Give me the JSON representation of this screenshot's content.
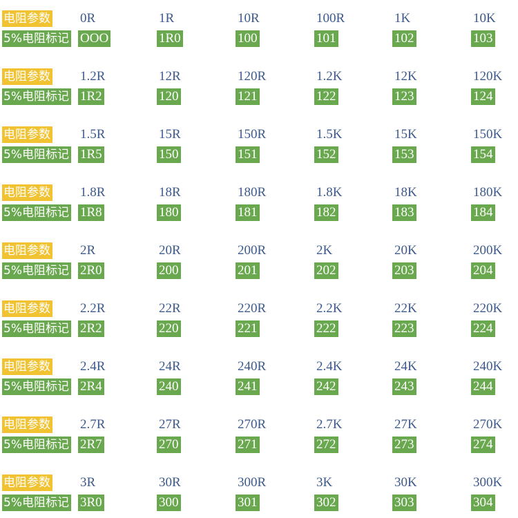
{
  "labels": {
    "param": "电阻参数",
    "mark": "5%电阻标记"
  },
  "colors": {
    "param_bg": "#f1c232",
    "mark_bg": "#6aa84f",
    "value_text": "#3d5a8c"
  },
  "rows": [
    {
      "values": [
        "0R",
        "1R",
        "10R",
        "100R",
        "1K",
        "10K"
      ],
      "codes": [
        "OOO",
        "1R0",
        "100",
        "101",
        "102",
        "103"
      ]
    },
    {
      "values": [
        "1.2R",
        "12R",
        "120R",
        "1.2K",
        "12K",
        "120K"
      ],
      "codes": [
        "1R2",
        "120",
        "121",
        "122",
        "123",
        "124"
      ]
    },
    {
      "values": [
        "1.5R",
        "15R",
        "150R",
        "1.5K",
        "15K",
        "150K"
      ],
      "codes": [
        "1R5",
        "150",
        "151",
        "152",
        "153",
        "154"
      ]
    },
    {
      "values": [
        "1.8R",
        "18R",
        "180R",
        "1.8K",
        "18K",
        "180K"
      ],
      "codes": [
        "1R8",
        "180",
        "181",
        "182",
        "183",
        "184"
      ]
    },
    {
      "values": [
        "2R",
        "20R",
        "200R",
        "2K",
        "20K",
        "200K"
      ],
      "codes": [
        "2R0",
        "200",
        "201",
        "202",
        "203",
        "204"
      ]
    },
    {
      "values": [
        "2.2R",
        "22R",
        "220R",
        "2.2K",
        "22K",
        "220K"
      ],
      "codes": [
        "2R2",
        "220",
        "221",
        "222",
        "223",
        "224"
      ]
    },
    {
      "values": [
        "2.4R",
        "24R",
        "240R",
        "2.4K",
        "24K",
        "240K"
      ],
      "codes": [
        "2R4",
        "240",
        "241",
        "242",
        "243",
        "244"
      ]
    },
    {
      "values": [
        "2.7R",
        "27R",
        "270R",
        "2.7K",
        "27K",
        "270K"
      ],
      "codes": [
        "2R7",
        "270",
        "271",
        "272",
        "273",
        "274"
      ]
    },
    {
      "values": [
        "3R",
        "30R",
        "300R",
        "3K",
        "30K",
        "300K"
      ],
      "codes": [
        "3R0",
        "300",
        "301",
        "302",
        "303",
        "304"
      ]
    }
  ]
}
